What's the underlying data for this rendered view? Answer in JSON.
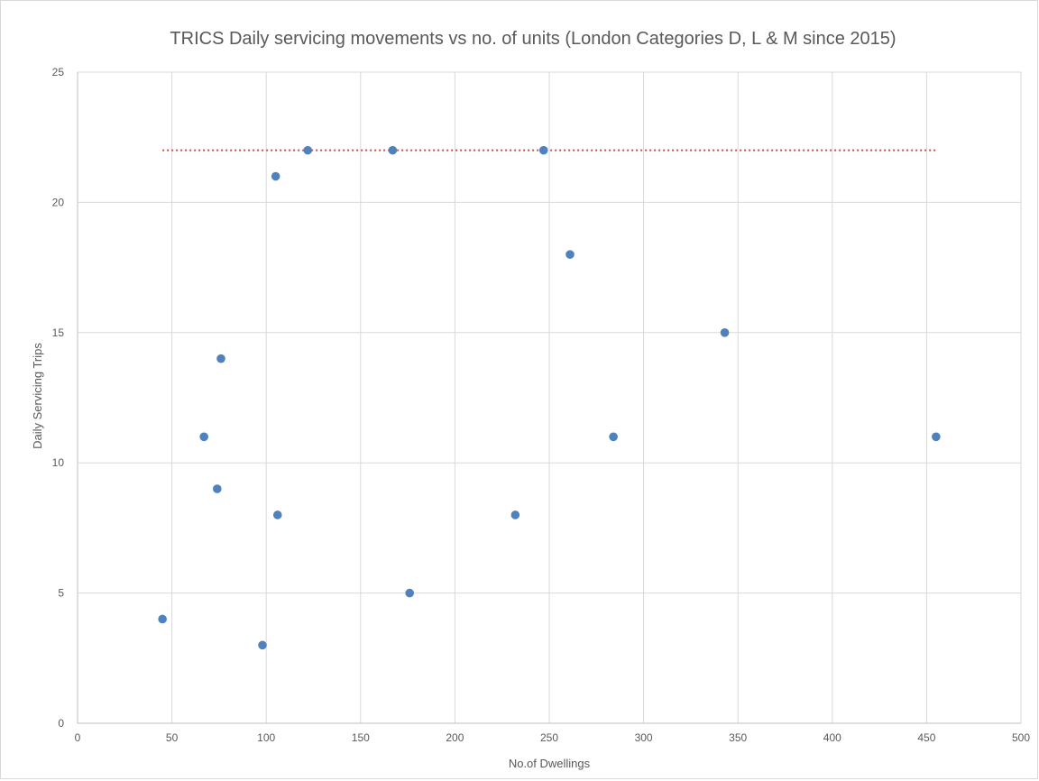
{
  "chart_data": {
    "type": "scatter",
    "title": "TRICS Daily servicing movements vs no. of units (London Categories D, L & M since 2015)",
    "xlabel": "No.of Dwellings",
    "ylabel": "Daily Servicing Trips",
    "xlim": [
      0,
      500
    ],
    "ylim": [
      0,
      25
    ],
    "x_ticks": [
      0,
      50,
      100,
      150,
      200,
      250,
      300,
      350,
      400,
      450,
      500
    ],
    "y_ticks": [
      0,
      5,
      10,
      15,
      20,
      25
    ],
    "grid": true,
    "legend": "none",
    "series": [
      {
        "color": "#4f81bd",
        "points": [
          {
            "x": 45,
            "y": 4
          },
          {
            "x": 67,
            "y": 11
          },
          {
            "x": 74,
            "y": 9
          },
          {
            "x": 76,
            "y": 14
          },
          {
            "x": 98,
            "y": 3
          },
          {
            "x": 105,
            "y": 21
          },
          {
            "x": 106,
            "y": 8
          },
          {
            "x": 122,
            "y": 22
          },
          {
            "x": 167,
            "y": 22
          },
          {
            "x": 176,
            "y": 5
          },
          {
            "x": 232,
            "y": 8
          },
          {
            "x": 247,
            "y": 22
          },
          {
            "x": 261,
            "y": 18
          },
          {
            "x": 284,
            "y": 11
          },
          {
            "x": 343,
            "y": 15
          },
          {
            "x": 455,
            "y": 11
          }
        ]
      }
    ],
    "reference_line": {
      "style": "dotted",
      "color": "#c0504d",
      "x_start": 45,
      "x_end": 455,
      "y": 22
    }
  }
}
